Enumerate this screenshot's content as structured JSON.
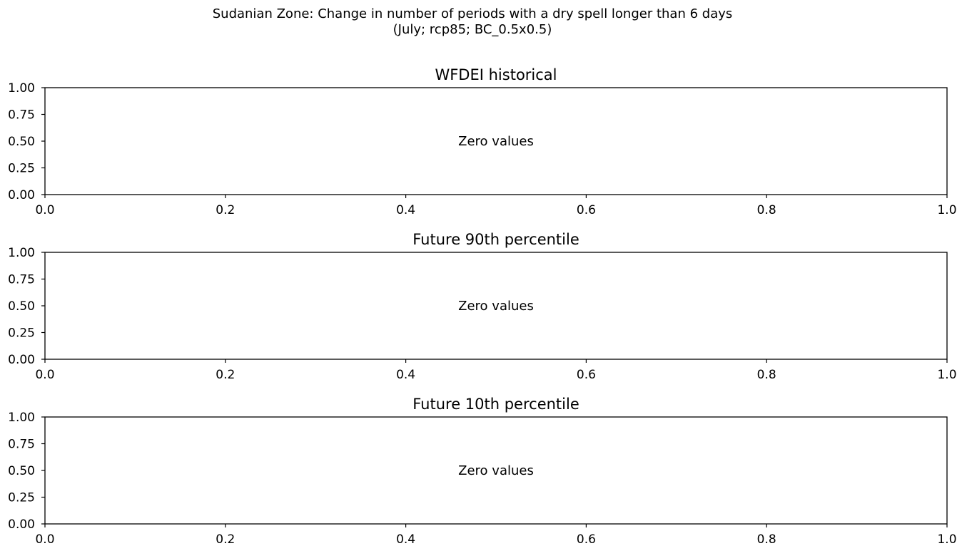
{
  "chart_data": {
    "title_lines": [
      "Sudanian Zone: Change in number of periods with a dry spell longer than 6 days",
      "(July; rcp85; BC_0.5x0.5)"
    ],
    "panels": [
      {
        "type": "bar",
        "title": "WFDEI historical",
        "annotation": "Zero values",
        "xlim": [
          0.0,
          1.0
        ],
        "ylim": [
          0.0,
          1.0
        ],
        "xticks": [
          "0.0",
          "0.2",
          "0.4",
          "0.6",
          "0.8",
          "1.0"
        ],
        "yticks": [
          "0.00",
          "0.25",
          "0.50",
          "0.75",
          "1.00"
        ],
        "values": []
      },
      {
        "type": "bar",
        "title": "Future 90th percentile",
        "annotation": "Zero values",
        "xlim": [
          0.0,
          1.0
        ],
        "ylim": [
          0.0,
          1.0
        ],
        "xticks": [
          "0.0",
          "0.2",
          "0.4",
          "0.6",
          "0.8",
          "1.0"
        ],
        "yticks": [
          "0.00",
          "0.25",
          "0.50",
          "0.75",
          "1.00"
        ],
        "values": []
      },
      {
        "type": "bar",
        "title": "Future 10th percentile",
        "annotation": "Zero values",
        "xlim": [
          0.0,
          1.0
        ],
        "ylim": [
          0.0,
          1.0
        ],
        "xticks": [
          "0.0",
          "0.2",
          "0.4",
          "0.6",
          "0.8",
          "1.0"
        ],
        "yticks": [
          "0.00",
          "0.25",
          "0.50",
          "0.75",
          "1.00"
        ],
        "values": []
      }
    ]
  }
}
